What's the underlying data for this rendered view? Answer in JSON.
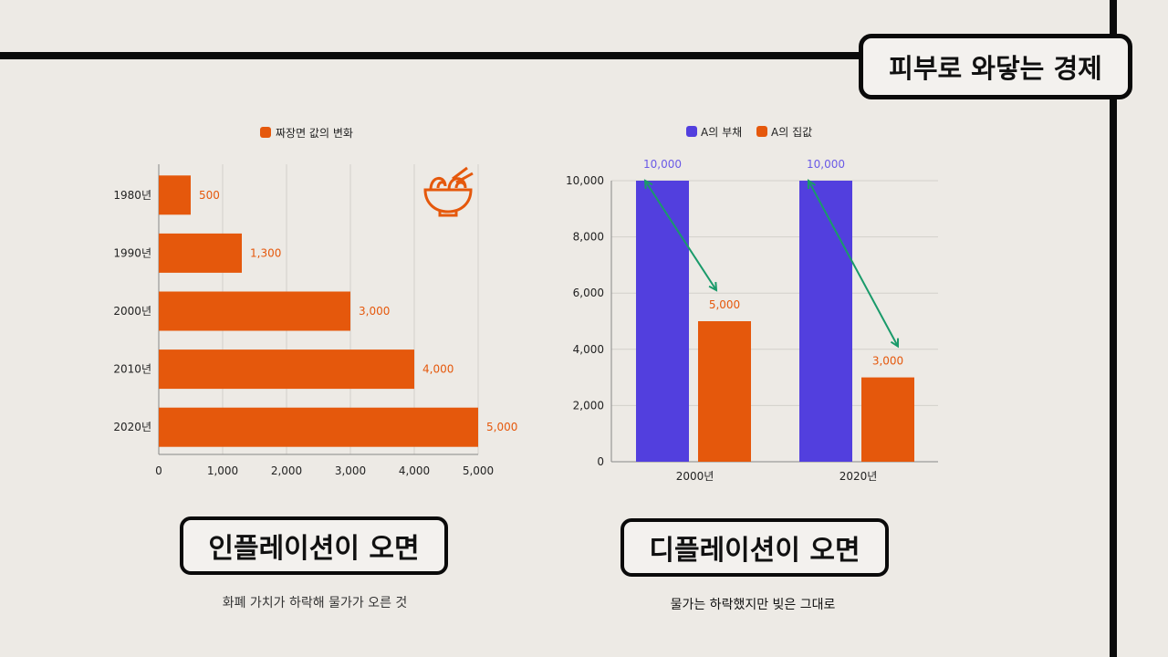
{
  "header": {
    "title": "피부로 와닿는 경제"
  },
  "colors": {
    "orange": "#e5580c",
    "blue": "#523fde",
    "arrow": "#1a9a6a",
    "background": "#edeae5"
  },
  "left": {
    "caption": "인플레이션이 오면",
    "description": "화폐 가치가 하락해 물가가 오른 것",
    "icon": "noodle-bowl-icon"
  },
  "right": {
    "caption": "디플레이션이 오면",
    "description": "물가는 하락했지만 빚은 그대로"
  },
  "chart_data": [
    {
      "type": "bar",
      "orientation": "horizontal",
      "legend": [
        "짜장면 값의 변화"
      ],
      "legend_position": "top",
      "categories": [
        "1980년",
        "1990년",
        "2000년",
        "2010년",
        "2020년"
      ],
      "series": [
        {
          "name": "짜장면 값의 변화",
          "values": [
            500,
            1300,
            3000,
            4000,
            5000
          ],
          "labels": [
            "500",
            "1,300",
            "3,000",
            "4,000",
            "5,000"
          ]
        }
      ],
      "xlim": [
        0,
        5000
      ],
      "xticks": [
        "0",
        "1,000",
        "2,000",
        "3,000",
        "4,000",
        "5,000"
      ],
      "grid": true
    },
    {
      "type": "bar",
      "legend": [
        "A의 부채",
        "A의 집값"
      ],
      "legend_position": "top",
      "categories": [
        "2000년",
        "2020년"
      ],
      "series": [
        {
          "name": "A의 부채",
          "values": [
            10000,
            10000
          ],
          "labels": [
            "10,000",
            "10,000"
          ]
        },
        {
          "name": "A의 집값",
          "values": [
            5000,
            3000
          ],
          "labels": [
            "5,000",
            "3,000"
          ]
        }
      ],
      "ylim": [
        0,
        10000
      ],
      "yticks": [
        "0",
        "2,000",
        "4,000",
        "6,000",
        "8,000",
        "10,000"
      ],
      "grid": true,
      "annotations": [
        "arrow from 부채 to 집값 in each group"
      ]
    }
  ]
}
